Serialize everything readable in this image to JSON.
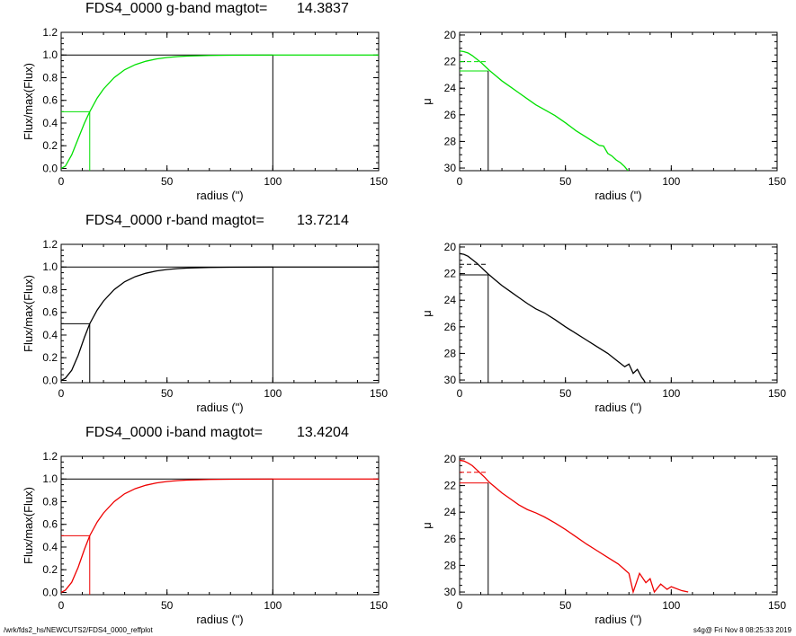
{
  "footer": {
    "left": "/wrk/fds2_hs/NEWCUTS2/FDS4_0000_reffplot",
    "right": "s4g@  Fri Nov  8 08:25:33 2019"
  },
  "chart_data": [
    {
      "type": "line",
      "panel": "g-growth",
      "title": "FDS4_0000 g-band  magtot=",
      "title_value": "14.3837",
      "xlabel": "radius (\")",
      "ylabel": "Flux/max(Flux)",
      "xlim": [
        0,
        150
      ],
      "ylim": [
        -0.02,
        1.2
      ],
      "xticks": [
        "0",
        "50",
        "100",
        "150"
      ],
      "yticks": [
        "0.0",
        "0.2",
        "0.4",
        "0.6",
        "0.8",
        "1.0",
        "1.2"
      ],
      "color": "#00e000",
      "curve": {
        "x": [
          0,
          2,
          5,
          8,
          11,
          13.5,
          17,
          20,
          25,
          30,
          35,
          40,
          45,
          50,
          55,
          60,
          70,
          80,
          90,
          100,
          120,
          150
        ],
        "y": [
          0,
          0.02,
          0.12,
          0.26,
          0.4,
          0.5,
          0.62,
          0.7,
          0.8,
          0.87,
          0.915,
          0.945,
          0.965,
          0.978,
          0.986,
          0.991,
          0.996,
          0.998,
          0.999,
          1.0,
          1.0,
          1.0
        ]
      },
      "half_radius": 13.5,
      "total_radius": 100
    },
    {
      "type": "line",
      "panel": "g-profile",
      "ylabel": "μ",
      "xlabel": "radius (\")",
      "xlim": [
        0,
        150
      ],
      "ylim": [
        30.2,
        19.8
      ],
      "ylog": false,
      "xticks": [
        "0",
        "50",
        "100",
        "150"
      ],
      "yticks": [
        "20",
        "22",
        "24",
        "26",
        "28",
        "30"
      ],
      "color": "#00e000",
      "profile": {
        "x": [
          0,
          2,
          4,
          6,
          8,
          10,
          12,
          14,
          17,
          20,
          24,
          28,
          32,
          36,
          40,
          45,
          50,
          55,
          60,
          63,
          66,
          68,
          70,
          72,
          74,
          76,
          78,
          80
        ],
        "y": [
          21.2,
          21.25,
          21.35,
          21.55,
          21.8,
          22.05,
          22.35,
          22.65,
          23.05,
          23.45,
          23.9,
          24.35,
          24.8,
          25.25,
          25.6,
          26.05,
          26.6,
          27.2,
          27.7,
          28.0,
          28.3,
          28.35,
          28.9,
          29.1,
          29.4,
          29.6,
          29.9,
          30.3
        ]
      },
      "half_radius": 13.5,
      "mu_e": 22.7,
      "mu_mean": 22.0
    },
    {
      "type": "line",
      "panel": "r-growth",
      "title": "FDS4_0000 r-band  magtot=",
      "title_value": "13.7214",
      "xlabel": "radius (\")",
      "ylabel": "Flux/max(Flux)",
      "xlim": [
        0,
        150
      ],
      "ylim": [
        -0.02,
        1.2
      ],
      "xticks": [
        "0",
        "50",
        "100",
        "150"
      ],
      "yticks": [
        "0.0",
        "0.2",
        "0.4",
        "0.6",
        "0.8",
        "1.0",
        "1.2"
      ],
      "color": "#000000",
      "curve": {
        "x": [
          0,
          2,
          5,
          8,
          11,
          13.5,
          17,
          20,
          25,
          30,
          35,
          40,
          45,
          50,
          55,
          60,
          70,
          80,
          90,
          100,
          120,
          150
        ],
        "y": [
          0,
          0.02,
          0.09,
          0.22,
          0.38,
          0.5,
          0.62,
          0.7,
          0.8,
          0.87,
          0.915,
          0.945,
          0.965,
          0.978,
          0.986,
          0.991,
          0.996,
          0.998,
          0.999,
          1.0,
          1.0,
          1.0
        ]
      },
      "half_radius": 13.5,
      "total_radius": 100
    },
    {
      "type": "line",
      "panel": "r-profile",
      "ylabel": "μ",
      "xlabel": "radius (\")",
      "xlim": [
        0,
        150
      ],
      "ylim": [
        30.2,
        19.8
      ],
      "xticks": [
        "0",
        "50",
        "100",
        "150"
      ],
      "yticks": [
        "20",
        "22",
        "24",
        "26",
        "28",
        "30"
      ],
      "color": "#000000",
      "profile": {
        "x": [
          0,
          2,
          4,
          6,
          8,
          10,
          12,
          14,
          17,
          20,
          24,
          28,
          32,
          36,
          40,
          45,
          50,
          55,
          60,
          65,
          70,
          74,
          78,
          80,
          82,
          84,
          86,
          87,
          88
        ],
        "y": [
          20.5,
          20.55,
          20.7,
          20.95,
          21.2,
          21.5,
          21.8,
          22.1,
          22.5,
          22.9,
          23.35,
          23.8,
          24.25,
          24.65,
          24.95,
          25.45,
          26.0,
          26.5,
          27.0,
          27.5,
          28.0,
          28.5,
          29.0,
          28.8,
          29.5,
          29.2,
          29.8,
          30.0,
          30.3
        ]
      },
      "half_radius": 13.5,
      "mu_e": 22.1,
      "mu_mean": 21.3
    },
    {
      "type": "line",
      "panel": "i-growth",
      "title": "FDS4_0000 i-band  magtot=",
      "title_value": "13.4204",
      "xlabel": "radius (\")",
      "ylabel": "Flux/max(Flux)",
      "xlim": [
        0,
        150
      ],
      "ylim": [
        -0.02,
        1.2
      ],
      "xticks": [
        "0",
        "50",
        "100",
        "150"
      ],
      "yticks": [
        "0.0",
        "0.2",
        "0.4",
        "0.6",
        "0.8",
        "1.0",
        "1.2"
      ],
      "color": "#ee0000",
      "curve": {
        "x": [
          0,
          2,
          5,
          8,
          11,
          13.5,
          17,
          20,
          25,
          30,
          35,
          40,
          45,
          50,
          55,
          60,
          70,
          80,
          90,
          100,
          120,
          150
        ],
        "y": [
          0,
          0.02,
          0.09,
          0.22,
          0.38,
          0.5,
          0.62,
          0.7,
          0.8,
          0.87,
          0.915,
          0.945,
          0.965,
          0.978,
          0.986,
          0.991,
          0.996,
          0.998,
          0.999,
          1.0,
          1.0,
          1.0
        ]
      },
      "half_radius": 13.5,
      "total_radius": 100
    },
    {
      "type": "line",
      "panel": "i-profile",
      "ylabel": "μ",
      "xlabel": "radius (\")",
      "xlim": [
        0,
        150
      ],
      "ylim": [
        30.2,
        19.8
      ],
      "xticks": [
        "0",
        "50",
        "100",
        "150"
      ],
      "yticks": [
        "20",
        "22",
        "24",
        "26",
        "28",
        "30"
      ],
      "color": "#ee0000",
      "profile": {
        "x": [
          0,
          2,
          4,
          6,
          8,
          10,
          12,
          14,
          17,
          20,
          24,
          28,
          32,
          36,
          40,
          45,
          50,
          55,
          60,
          65,
          70,
          75,
          80,
          82,
          85,
          88,
          90,
          92,
          95,
          98,
          100,
          105,
          108
        ],
        "y": [
          20.1,
          20.15,
          20.3,
          20.5,
          20.8,
          21.1,
          21.4,
          21.75,
          22.15,
          22.55,
          23.0,
          23.45,
          23.8,
          24.05,
          24.35,
          24.8,
          25.3,
          25.85,
          26.4,
          26.9,
          27.4,
          27.9,
          28.6,
          30.0,
          28.6,
          29.3,
          29.0,
          30.0,
          29.4,
          29.8,
          29.6,
          29.9,
          30.0
        ]
      },
      "half_radius": 13.5,
      "mu_e": 21.8,
      "mu_mean": 21.0
    }
  ]
}
